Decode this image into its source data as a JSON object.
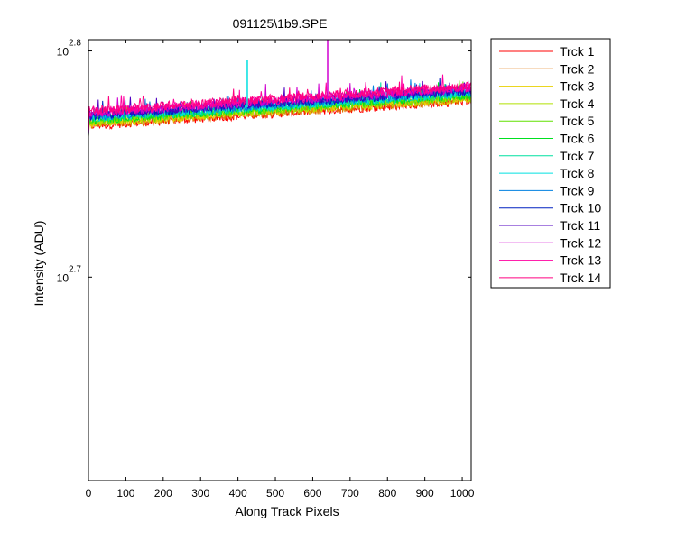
{
  "chart_data": {
    "type": "line",
    "title": "091125\\1b9.SPE",
    "xlabel": "Along Track Pixels",
    "ylabel": "Intensity (ADU)",
    "yscale": "log",
    "xlim": [
      0,
      1024
    ],
    "ylim_log10": [
      2.61,
      2.805
    ],
    "x_ticks": [
      "0",
      "100",
      "200",
      "300",
      "400",
      "500",
      "600",
      "700",
      "800",
      "900",
      "1000"
    ],
    "y_ticks": [
      {
        "base": "10",
        "exp": "2.8"
      },
      {
        "base": "10",
        "exp": "2.7"
      }
    ],
    "legend_position": "outside-top-right",
    "grid": false,
    "series": [
      {
        "name": "Trck 1",
        "color": "#ff0000",
        "y_start": 2.767,
        "y_end": 2.778
      },
      {
        "name": "Trck 2",
        "color": "#e07000",
        "y_start": 2.7675,
        "y_end": 2.7785
      },
      {
        "name": "Trck 3",
        "color": "#e8d000",
        "y_start": 2.768,
        "y_end": 2.779
      },
      {
        "name": "Trck 4",
        "color": "#b0e000",
        "y_start": 2.7685,
        "y_end": 2.7795
      },
      {
        "name": "Trck 5",
        "color": "#60e000",
        "y_start": 2.769,
        "y_end": 2.78
      },
      {
        "name": "Trck 6",
        "color": "#00e020",
        "y_start": 2.7695,
        "y_end": 2.7805
      },
      {
        "name": "Trck 7",
        "color": "#00e0a0",
        "y_start": 2.77,
        "y_end": 2.781
      },
      {
        "name": "Trck 8",
        "color": "#00e0e0",
        "y_start": 2.7705,
        "y_end": 2.7815
      },
      {
        "name": "Trck 9",
        "color": "#0080e0",
        "y_start": 2.771,
        "y_end": 2.782
      },
      {
        "name": "Trck 10",
        "color": "#0020c0",
        "y_start": 2.7715,
        "y_end": 2.7825
      },
      {
        "name": "Trck 11",
        "color": "#5000c0",
        "y_start": 2.772,
        "y_end": 2.783
      },
      {
        "name": "Trck 12",
        "color": "#d000d0",
        "y_start": 2.7725,
        "y_end": 2.7835
      },
      {
        "name": "Trck 13",
        "color": "#ff00a0",
        "y_start": 2.773,
        "y_end": 2.784
      },
      {
        "name": "Trck 14",
        "color": "#ff0080",
        "y_start": 2.7735,
        "y_end": 2.7845
      }
    ],
    "spikes": [
      {
        "series": "Trck 8",
        "x": 425,
        "y": 2.796
      },
      {
        "series": "Trck 12",
        "x": 640,
        "y": 2.805
      }
    ]
  }
}
